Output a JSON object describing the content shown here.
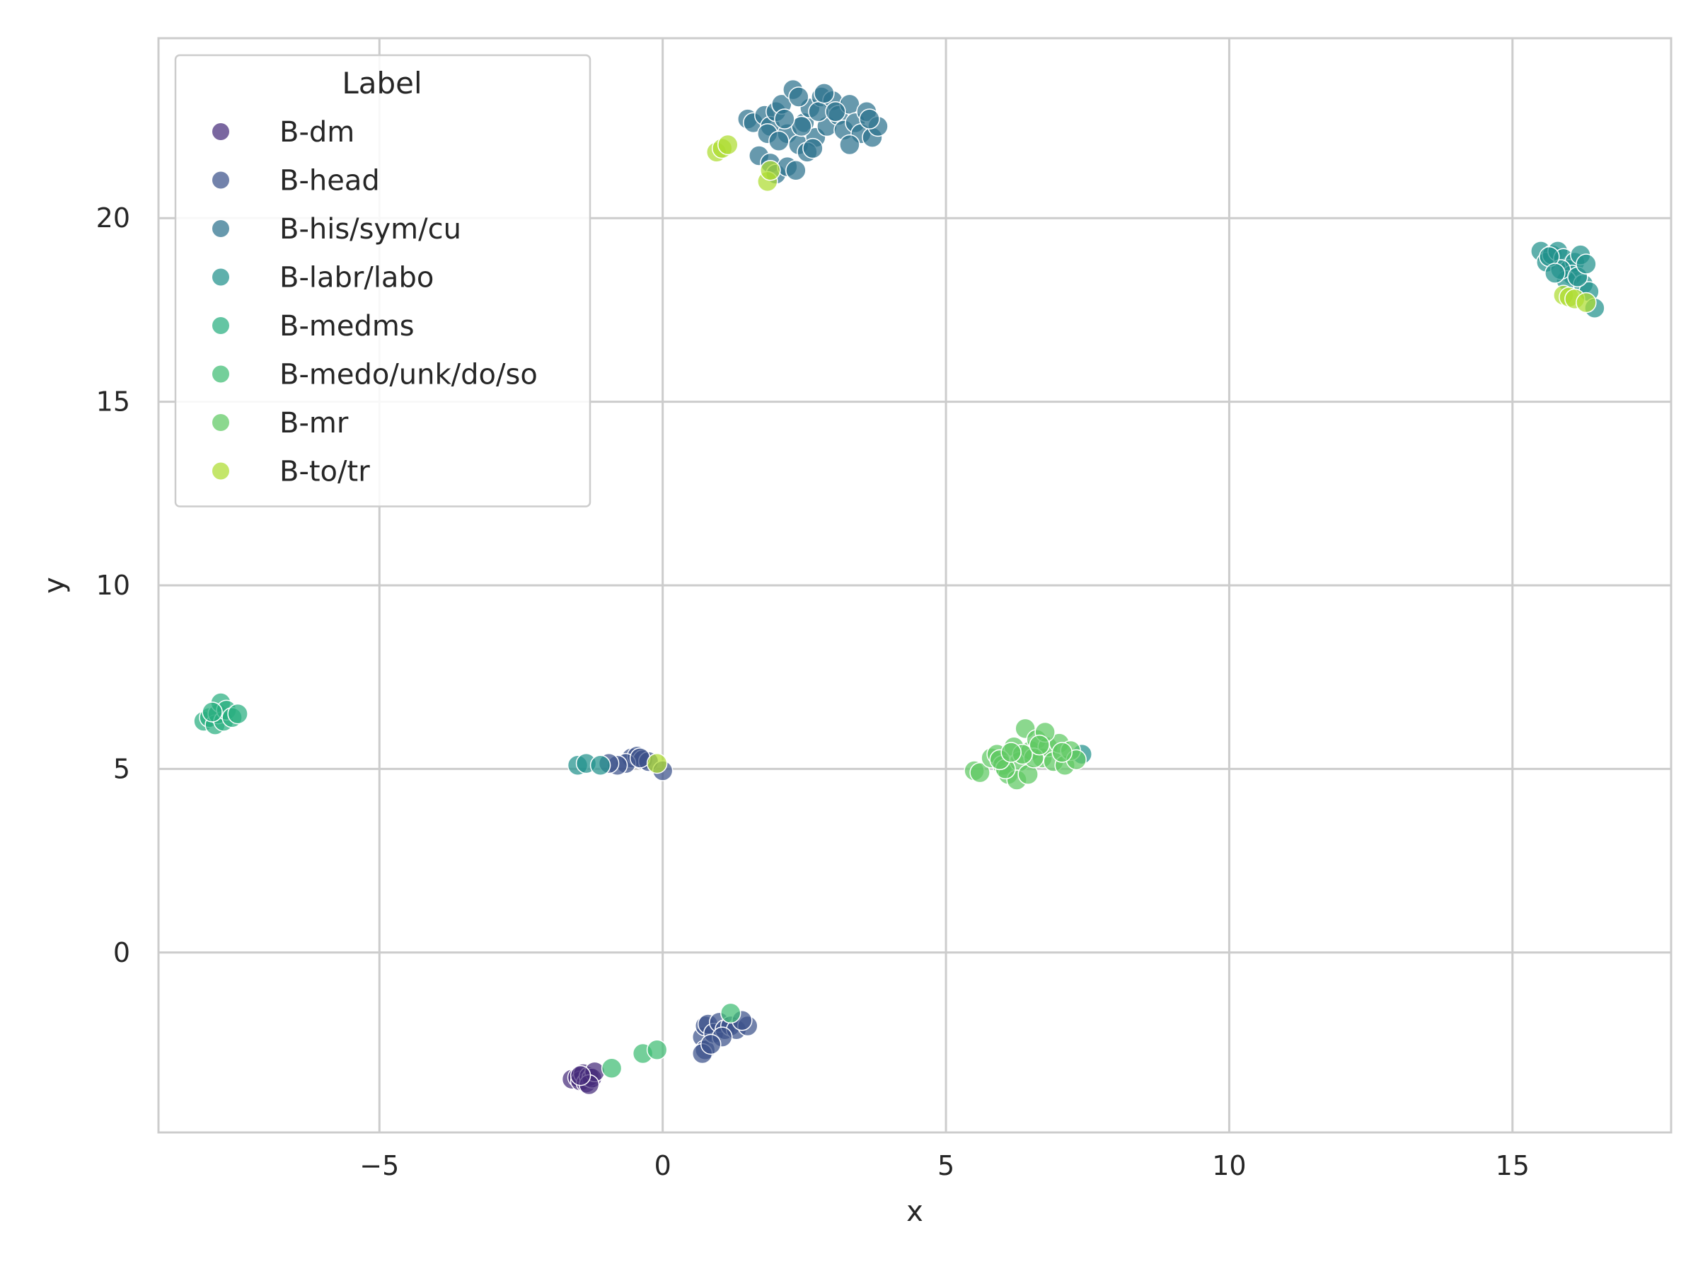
{
  "chart_data": {
    "type": "scatter",
    "title": "",
    "xlabel": "x",
    "ylabel": "y",
    "xlim": [
      -8.9,
      17.8
    ],
    "ylim": [
      -4.9,
      24.9
    ],
    "xticks": [
      -5,
      0,
      5,
      10,
      15
    ],
    "yticks": [
      0,
      5,
      10,
      15,
      20
    ],
    "x_tick_labels": [
      "−5",
      "0",
      "5",
      "10",
      "15"
    ],
    "y_tick_labels": [
      "0",
      "5",
      "10",
      "15",
      "20"
    ],
    "grid": true,
    "legend": {
      "title": "Label",
      "placement": "top-left"
    },
    "series": [
      {
        "name": "B-dm",
        "color": "#472d7b",
        "points": [
          [
            -1.6,
            -3.45
          ],
          [
            -1.5,
            -3.4
          ],
          [
            -1.45,
            -3.5
          ],
          [
            -1.4,
            -3.3
          ],
          [
            -1.35,
            -3.55
          ],
          [
            -1.3,
            -3.38
          ],
          [
            -1.25,
            -3.42
          ],
          [
            -1.2,
            -3.25
          ],
          [
            -1.3,
            -3.6
          ],
          [
            -1.45,
            -3.35
          ]
        ]
      },
      {
        "name": "B-head",
        "color": "#3b528b",
        "points": [
          [
            -0.55,
            5.3
          ],
          [
            -0.45,
            5.35
          ],
          [
            -0.35,
            5.25
          ],
          [
            -0.25,
            5.2
          ],
          [
            -0.65,
            5.15
          ],
          [
            -0.8,
            5.1
          ],
          [
            -0.95,
            5.15
          ],
          [
            0.0,
            4.95
          ],
          [
            -0.4,
            5.3
          ],
          [
            0.7,
            -2.3
          ],
          [
            0.75,
            -2.0
          ],
          [
            0.8,
            -1.95
          ],
          [
            0.75,
            -2.65
          ],
          [
            0.7,
            -2.75
          ],
          [
            0.9,
            -2.2
          ],
          [
            1.0,
            -1.9
          ],
          [
            1.1,
            -2.1
          ],
          [
            1.2,
            -2.0
          ],
          [
            1.3,
            -2.1
          ],
          [
            1.5,
            -2.0
          ],
          [
            1.05,
            -2.3
          ],
          [
            0.85,
            -2.5
          ],
          [
            1.4,
            -1.85
          ]
        ]
      },
      {
        "name": "B-his/sym/cu",
        "color": "#2c728e",
        "points": [
          [
            1.5,
            22.7
          ],
          [
            1.6,
            22.6
          ],
          [
            1.8,
            22.8
          ],
          [
            1.9,
            22.5
          ],
          [
            2.0,
            22.9
          ],
          [
            2.1,
            23.1
          ],
          [
            2.2,
            22.3
          ],
          [
            2.3,
            23.5
          ],
          [
            2.4,
            22.0
          ],
          [
            2.5,
            22.6
          ],
          [
            2.6,
            23.0
          ],
          [
            2.7,
            22.2
          ],
          [
            2.8,
            23.3
          ],
          [
            2.9,
            22.5
          ],
          [
            3.0,
            23.2
          ],
          [
            3.1,
            22.8
          ],
          [
            3.2,
            22.4
          ],
          [
            3.3,
            23.1
          ],
          [
            3.4,
            22.6
          ],
          [
            3.5,
            22.3
          ],
          [
            3.6,
            22.9
          ],
          [
            3.7,
            22.2
          ],
          [
            3.8,
            22.5
          ],
          [
            1.7,
            21.7
          ],
          [
            1.9,
            21.5
          ],
          [
            2.0,
            21.2
          ],
          [
            2.2,
            21.4
          ],
          [
            2.35,
            21.3
          ],
          [
            2.55,
            21.8
          ],
          [
            3.3,
            22.0
          ],
          [
            2.45,
            22.5
          ],
          [
            2.75,
            22.9
          ],
          [
            2.15,
            22.7
          ],
          [
            1.85,
            22.3
          ],
          [
            2.05,
            22.1
          ],
          [
            2.65,
            21.9
          ],
          [
            2.85,
            23.4
          ],
          [
            2.4,
            23.3
          ],
          [
            3.05,
            22.9
          ],
          [
            3.65,
            22.7
          ]
        ]
      },
      {
        "name": "B-labr/labo",
        "color": "#21918c",
        "points": [
          [
            15.5,
            19.1
          ],
          [
            15.6,
            18.8
          ],
          [
            15.7,
            19.0
          ],
          [
            15.8,
            19.1
          ],
          [
            15.9,
            18.9
          ],
          [
            16.0,
            18.6
          ],
          [
            16.1,
            18.8
          ],
          [
            16.2,
            19.0
          ],
          [
            16.05,
            18.45
          ],
          [
            15.95,
            18.3
          ],
          [
            16.25,
            18.2
          ],
          [
            16.35,
            18.0
          ],
          [
            16.45,
            17.55
          ],
          [
            15.85,
            18.6
          ],
          [
            16.15,
            18.4
          ],
          [
            15.65,
            18.95
          ],
          [
            16.3,
            18.75
          ],
          [
            15.75,
            18.5
          ],
          [
            -1.5,
            5.1
          ],
          [
            -1.35,
            5.15
          ],
          [
            -1.1,
            5.1
          ],
          [
            7.4,
            5.4
          ]
        ]
      },
      {
        "name": "B-medms",
        "color": "#28ae80",
        "points": [
          [
            -8.1,
            6.3
          ],
          [
            -8.0,
            6.4
          ],
          [
            -7.9,
            6.2
          ],
          [
            -7.85,
            6.5
          ],
          [
            -7.8,
            6.8
          ],
          [
            -7.75,
            6.3
          ],
          [
            -7.7,
            6.6
          ],
          [
            -7.6,
            6.4
          ],
          [
            -7.5,
            6.5
          ],
          [
            -7.95,
            6.55
          ]
        ]
      },
      {
        "name": "B-medo/unk/do/so",
        "color": "#3fbc73",
        "points": [
          [
            -0.9,
            -3.15
          ],
          [
            -0.35,
            -2.75
          ],
          [
            -0.1,
            -2.65
          ],
          [
            1.2,
            -1.65
          ]
        ]
      },
      {
        "name": "B-mr",
        "color": "#5ec962",
        "points": [
          [
            5.5,
            4.95
          ],
          [
            5.6,
            4.9
          ],
          [
            5.8,
            5.3
          ],
          [
            5.9,
            5.4
          ],
          [
            6.0,
            5.1
          ],
          [
            6.1,
            4.85
          ],
          [
            6.2,
            5.6
          ],
          [
            6.3,
            5.2
          ],
          [
            6.4,
            6.1
          ],
          [
            6.5,
            5.5
          ],
          [
            6.6,
            5.8
          ],
          [
            6.7,
            5.3
          ],
          [
            6.8,
            5.6
          ],
          [
            6.9,
            5.2
          ],
          [
            7.0,
            5.7
          ],
          [
            7.1,
            5.1
          ],
          [
            7.2,
            5.5
          ],
          [
            7.3,
            5.25
          ],
          [
            6.25,
            4.7
          ],
          [
            6.45,
            4.85
          ],
          [
            6.05,
            5.0
          ],
          [
            6.55,
            5.3
          ],
          [
            6.75,
            6.0
          ],
          [
            6.35,
            5.4
          ],
          [
            7.05,
            5.45
          ],
          [
            5.95,
            5.25
          ],
          [
            6.65,
            5.65
          ],
          [
            6.15,
            5.45
          ]
        ]
      },
      {
        "name": "B-to/tr",
        "color": "#addc30",
        "points": [
          [
            0.95,
            21.8
          ],
          [
            1.05,
            21.9
          ],
          [
            1.15,
            22.0
          ],
          [
            1.85,
            21.0
          ],
          [
            1.9,
            21.3
          ],
          [
            15.9,
            17.9
          ],
          [
            16.0,
            17.85
          ],
          [
            16.1,
            17.8
          ],
          [
            16.3,
            17.7
          ],
          [
            -0.1,
            5.15
          ]
        ]
      }
    ]
  }
}
